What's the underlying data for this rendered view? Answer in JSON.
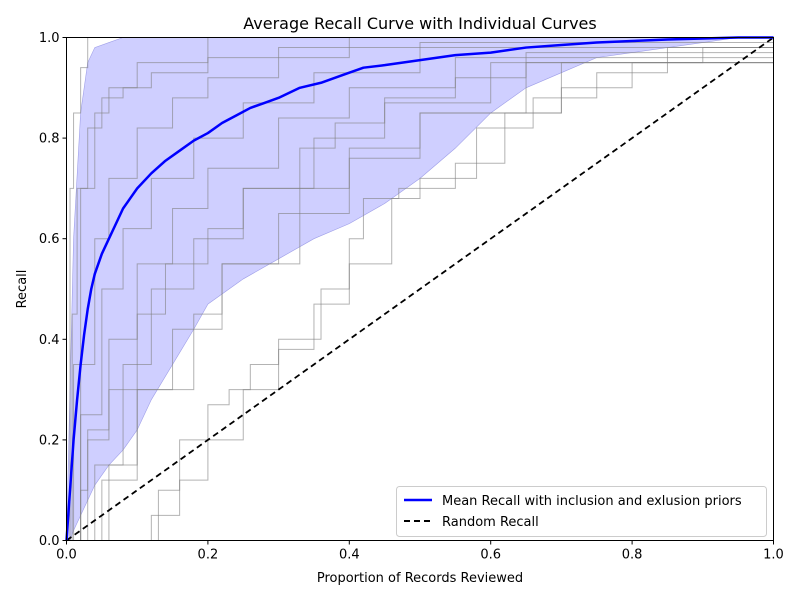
{
  "chart_data": {
    "type": "line",
    "title": "Average Recall Curve with Individual Curves",
    "xlabel": "Proportion of Records Reviewed",
    "ylabel": "Recall",
    "xlim": [
      0,
      1
    ],
    "ylim": [
      0,
      1
    ],
    "xticks": [
      "0.0",
      "0.2",
      "0.4",
      "0.6",
      "0.8",
      "1.0"
    ],
    "yticks": [
      "0.0",
      "0.2",
      "0.4",
      "0.6",
      "0.8",
      "1.0"
    ],
    "grid": false,
    "legend_position": "lower-right",
    "colors": {
      "mean": "#0000ff",
      "band": "#ccccff",
      "individual": "#808080",
      "random": "#000000"
    },
    "mean_series": {
      "name": "Mean Recall with inclusion and exlusion priors",
      "x": [
        0,
        0.005,
        0.01,
        0.015,
        0.02,
        0.025,
        0.03,
        0.035,
        0.04,
        0.05,
        0.06,
        0.07,
        0.08,
        0.09,
        0.1,
        0.12,
        0.14,
        0.16,
        0.18,
        0.2,
        0.22,
        0.24,
        0.26,
        0.28,
        0.3,
        0.33,
        0.36,
        0.39,
        0.42,
        0.45,
        0.5,
        0.55,
        0.6,
        0.65,
        0.7,
        0.75,
        0.8,
        0.85,
        0.9,
        0.95,
        1.0
      ],
      "y": [
        0,
        0.1,
        0.2,
        0.28,
        0.35,
        0.41,
        0.46,
        0.5,
        0.53,
        0.57,
        0.6,
        0.63,
        0.66,
        0.68,
        0.7,
        0.73,
        0.755,
        0.775,
        0.795,
        0.81,
        0.83,
        0.845,
        0.86,
        0.87,
        0.88,
        0.9,
        0.91,
        0.925,
        0.94,
        0.945,
        0.955,
        0.965,
        0.97,
        0.98,
        0.985,
        0.99,
        0.993,
        0.996,
        0.998,
        1.0,
        1.0
      ]
    },
    "band": {
      "x": [
        0,
        0.005,
        0.01,
        0.02,
        0.03,
        0.04,
        0.06,
        0.08,
        0.1,
        0.12,
        0.15,
        0.18,
        0.2,
        0.25,
        0.3,
        0.35,
        0.4,
        0.45,
        0.5,
        0.55,
        0.6,
        0.65,
        0.7,
        0.75,
        0.8,
        0.85,
        0.9,
        0.95
      ],
      "upper": [
        0,
        0.3,
        0.6,
        0.85,
        0.95,
        0.98,
        0.99,
        1.0,
        1.0,
        1.0,
        1.0,
        1.0,
        1.0,
        1.0,
        1.0,
        1.0,
        1.0,
        1.0,
        1.0,
        1.0,
        1.0,
        1.0,
        1.0,
        1.0,
        1.0,
        1.0,
        1.0,
        1.0
      ],
      "lower": [
        0,
        0.0,
        0.02,
        0.05,
        0.08,
        0.11,
        0.15,
        0.18,
        0.22,
        0.28,
        0.35,
        0.42,
        0.47,
        0.52,
        0.56,
        0.6,
        0.63,
        0.67,
        0.72,
        0.78,
        0.85,
        0.9,
        0.93,
        0.96,
        0.97,
        0.98,
        0.99,
        1.0
      ]
    },
    "individual_series": [
      {
        "x": [
          0,
          0.005,
          0.01,
          0.02,
          0.03,
          1.0
        ],
        "y": [
          0,
          0.7,
          0.85,
          0.94,
          1.0,
          1.0
        ]
      },
      {
        "x": [
          0,
          0.01,
          0.02,
          0.04,
          0.06,
          0.1,
          0.2,
          1.0
        ],
        "y": [
          0,
          0.35,
          0.7,
          0.85,
          0.9,
          0.95,
          1.0,
          1.0
        ]
      },
      {
        "x": [
          0,
          0.02,
          0.04,
          0.06,
          0.1,
          0.15,
          0.2,
          0.3,
          0.4,
          1.0
        ],
        "y": [
          0,
          0.35,
          0.6,
          0.72,
          0.82,
          0.88,
          0.92,
          0.96,
          1.0,
          1.0
        ]
      },
      {
        "x": [
          0,
          0.02,
          0.05,
          0.08,
          0.12,
          0.18,
          0.25,
          0.35,
          0.5,
          1.0
        ],
        "y": [
          0,
          0.25,
          0.5,
          0.62,
          0.72,
          0.8,
          0.87,
          0.93,
          0.98,
          1.0
        ]
      },
      {
        "x": [
          0,
          0.03,
          0.06,
          0.1,
          0.15,
          0.2,
          0.3,
          0.4,
          0.55,
          1.0
        ],
        "y": [
          0,
          0.2,
          0.4,
          0.55,
          0.66,
          0.74,
          0.84,
          0.9,
          0.96,
          1.0
        ]
      },
      {
        "x": [
          0,
          0.04,
          0.08,
          0.12,
          0.18,
          0.25,
          0.35,
          0.45,
          0.6,
          1.0
        ],
        "y": [
          0,
          0.15,
          0.35,
          0.5,
          0.6,
          0.7,
          0.8,
          0.87,
          0.95,
          1.0
        ]
      },
      {
        "x": [
          0,
          0.05,
          0.1,
          0.15,
          0.22,
          0.3,
          0.4,
          0.5,
          0.65,
          1.0
        ],
        "y": [
          0,
          0.12,
          0.3,
          0.42,
          0.55,
          0.65,
          0.76,
          0.85,
          0.95,
          1.0
        ]
      },
      {
        "x": [
          0,
          0.06,
          0.1,
          0.18,
          0.22,
          0.3,
          0.33,
          0.4,
          0.5,
          0.7,
          1.0
        ],
        "y": [
          0,
          0.15,
          0.3,
          0.45,
          0.55,
          0.55,
          0.7,
          0.78,
          0.85,
          0.95,
          1.0
        ]
      },
      {
        "x": [
          0,
          0.1,
          0.13,
          0.16,
          0.2,
          0.23,
          0.26,
          0.3,
          0.36,
          0.4,
          0.46,
          0.5,
          0.58,
          0.66,
          0.75,
          0.85,
          1.0
        ],
        "y": [
          0,
          0.0,
          0.1,
          0.2,
          0.27,
          0.3,
          0.35,
          0.4,
          0.5,
          0.55,
          0.68,
          0.72,
          0.82,
          0.88,
          0.93,
          0.98,
          1.0
        ]
      },
      {
        "x": [
          0,
          0.12,
          0.16,
          0.2,
          0.25,
          0.3,
          0.35,
          0.4,
          0.42,
          0.47,
          0.55,
          0.62,
          0.7,
          0.8,
          0.9,
          1.0
        ],
        "y": [
          0,
          0.05,
          0.12,
          0.2,
          0.3,
          0.38,
          0.47,
          0.6,
          0.68,
          0.7,
          0.75,
          0.85,
          0.9,
          0.95,
          0.98,
          1.0
        ]
      },
      {
        "x": [
          0,
          0.02,
          0.03,
          0.06,
          0.1,
          0.14,
          0.2,
          0.25,
          0.33,
          0.38,
          0.45,
          0.55,
          0.65,
          1.0
        ],
        "y": [
          0,
          0.1,
          0.22,
          0.3,
          0.45,
          0.55,
          0.62,
          0.7,
          0.78,
          0.83,
          0.88,
          0.92,
          0.97,
          1.0
        ]
      },
      {
        "x": [
          0,
          0.008,
          0.015,
          0.03,
          0.05,
          0.08,
          0.12,
          0.2,
          0.3,
          0.5,
          1.0
        ],
        "y": [
          0,
          0.45,
          0.7,
          0.82,
          0.88,
          0.9,
          0.93,
          0.96,
          0.98,
          0.99,
          1.0
        ]
      }
    ],
    "random_series": {
      "name": "Random Recall",
      "x": [
        0,
        1
      ],
      "y": [
        0,
        1
      ]
    }
  }
}
